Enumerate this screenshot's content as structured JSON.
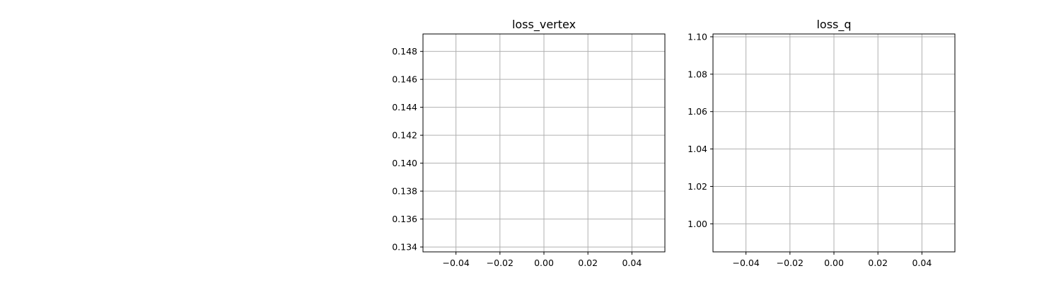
{
  "chart_data": [
    {
      "type": "line",
      "title": "loss_vertex",
      "xlabel": "",
      "ylabel": "",
      "xlim": [
        -0.055,
        0.055
      ],
      "ylim": [
        0.13365,
        0.14925
      ],
      "xticks": [
        -0.04,
        -0.02,
        0.0,
        0.02,
        0.04
      ],
      "xtick_labels": [
        "−0.04",
        "−0.02",
        "0.00",
        "0.02",
        "0.04"
      ],
      "yticks": [
        0.134,
        0.136,
        0.138,
        0.14,
        0.142,
        0.144,
        0.146,
        0.148
      ],
      "ytick_labels": [
        "0.134",
        "0.136",
        "0.138",
        "0.140",
        "0.142",
        "0.144",
        "0.146",
        "0.148"
      ],
      "grid": true,
      "series": []
    },
    {
      "type": "line",
      "title": "loss_q",
      "xlabel": "",
      "ylabel": "",
      "xlim": [
        -0.055,
        0.055
      ],
      "ylim": [
        0.985,
        1.1015
      ],
      "xticks": [
        -0.04,
        -0.02,
        0.0,
        0.02,
        0.04
      ],
      "xtick_labels": [
        "−0.04",
        "−0.02",
        "0.00",
        "0.02",
        "0.04"
      ],
      "yticks": [
        1.0,
        1.02,
        1.04,
        1.06,
        1.08,
        1.1
      ],
      "ytick_labels": [
        "1.00",
        "1.02",
        "1.04",
        "1.06",
        "1.08",
        "1.10"
      ],
      "grid": true,
      "series": []
    }
  ]
}
